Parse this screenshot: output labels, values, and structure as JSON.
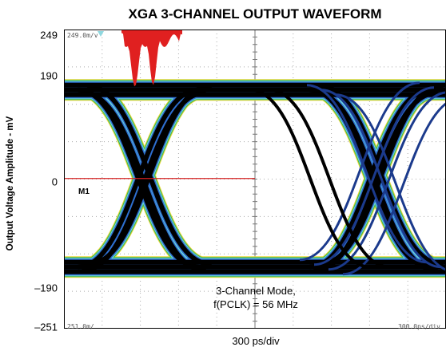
{
  "chart_data": {
    "type": "eye-diagram",
    "title": "XGA 3-CHANNEL OUTPUT WAVEFORM",
    "xlabel": "300 ps/div",
    "ylabel": "Output Voltage Amplitude - mV",
    "y_ticks": [
      "249",
      "190",
      "0",
      "–190",
      "–251"
    ],
    "y_tick_values": [
      249,
      190,
      0,
      -190,
      -251
    ],
    "ylim": [
      -251,
      249
    ],
    "grid": true,
    "annotation_line1": "3-Channel Mode,",
    "annotation_line2": "f(PCLK) = 56 MHz",
    "scope_top_left": "249.0m/v",
    "scope_bottom_left": "251.0m/",
    "scope_bottom_right": "300.0ps/div",
    "marker_label": "M1",
    "eye_levels_mV": {
      "high": 148,
      "low": -148
    },
    "colors": {
      "trace": "#000000",
      "trace_dense": "#1b3a8c",
      "halo_blue": "#2e6fd0",
      "halo_cyan": "#6fd8d8",
      "halo_green": "#3fb24a",
      "halo_yellow": "#e8d838",
      "histogram": "#e02020",
      "center_line": "#d42020",
      "grid": "#a8a8a8"
    }
  }
}
